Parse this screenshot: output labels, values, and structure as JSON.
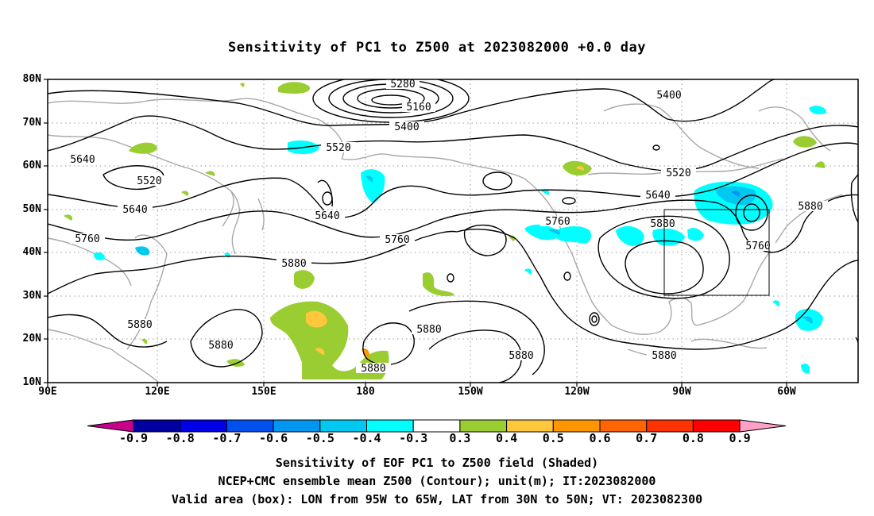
{
  "title": "Sensitivity of PC1 to Z500 at 2023082000 +0.0 day",
  "lat_labels": [
    "80N",
    "70N",
    "60N",
    "50N",
    "40N",
    "30N",
    "20N",
    "10N"
  ],
  "lon_labels": [
    "90E",
    "120E",
    "150E",
    "180",
    "150W",
    "120W",
    "90W",
    "60W"
  ],
  "contour_labels": [
    {
      "text": "5280"
    },
    {
      "text": "5160"
    },
    {
      "text": "5400"
    },
    {
      "text": "5400"
    },
    {
      "text": "5520"
    },
    {
      "text": "5520"
    },
    {
      "text": "5520"
    },
    {
      "text": "5640"
    },
    {
      "text": "5640"
    },
    {
      "text": "5640"
    },
    {
      "text": "5640"
    },
    {
      "text": "5760"
    },
    {
      "text": "5760"
    },
    {
      "text": "5760"
    },
    {
      "text": "5760"
    },
    {
      "text": "5880"
    },
    {
      "text": "5880"
    },
    {
      "text": "5880"
    },
    {
      "text": "5880"
    },
    {
      "text": "5880"
    },
    {
      "text": "5880"
    },
    {
      "text": "5880"
    },
    {
      "text": "5880"
    }
  ],
  "valid_box": {
    "lon_from": "95W",
    "lon_to": "65W",
    "lat_from": "30N",
    "lat_to": "50N"
  },
  "colorbar": {
    "labels": [
      "-0.9",
      "-0.8",
      "-0.7",
      "-0.6",
      "-0.5",
      "-0.4",
      "-0.3",
      "0.3",
      "0.4",
      "0.5",
      "0.6",
      "0.7",
      "0.8",
      "0.9"
    ],
    "colors": [
      "#c8008c",
      "#0000a0",
      "#0000e6",
      "#0050f0",
      "#0096f0",
      "#00c8f0",
      "#00ffff",
      "#ffffff",
      "#9acd32",
      "#ffc83c",
      "#ff9600",
      "#ff6400",
      "#ff3200",
      "#ff0000",
      "#ffa0c8"
    ]
  },
  "captions": [
    "Sensitivity of EOF PC1 to Z500 field (Shaded)",
    "NCEP+CMC ensemble mean Z500 (Contour); unit(m); IT:2023082000",
    "Valid area (box): LON from 95W to 65W, LAT from 30N to 50N; VT: 2023082300"
  ]
}
